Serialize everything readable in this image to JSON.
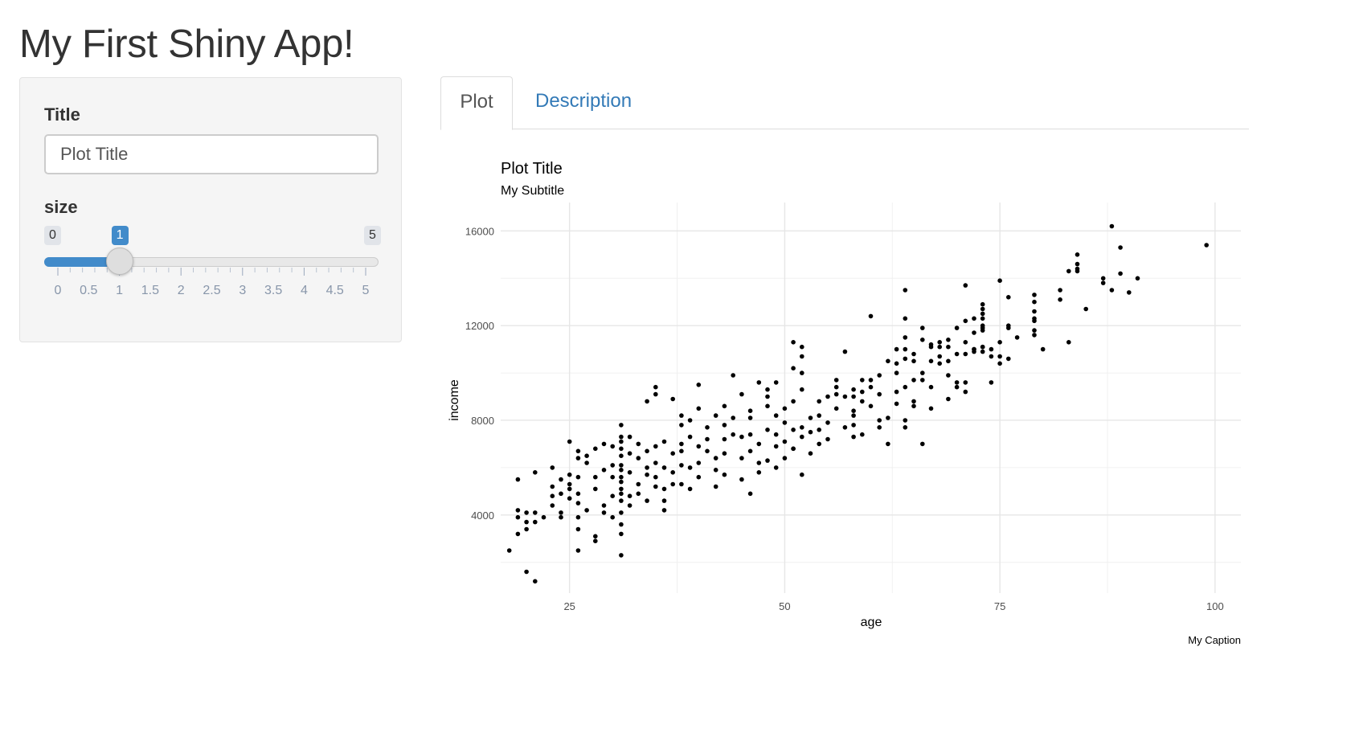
{
  "app": {
    "title": "My First Shiny App!"
  },
  "sidebar": {
    "title_input": {
      "label": "Title",
      "value": "Plot Title"
    },
    "size_slider": {
      "label": "size",
      "min_label": "0",
      "max_label": "5",
      "value_label": "1",
      "min": 0,
      "max": 5,
      "value": 1,
      "tick_labels": [
        "0",
        "0.5",
        "1",
        "1.5",
        "2",
        "2.5",
        "3",
        "3.5",
        "4",
        "4.5",
        "5"
      ],
      "accent_color": "#428bca"
    }
  },
  "tabs": [
    {
      "label": "Plot",
      "active": true
    },
    {
      "label": "Description",
      "active": false
    }
  ],
  "chart_data": {
    "type": "scatter",
    "title": "Plot Title",
    "subtitle": "My Subtitle",
    "xlabel": "age",
    "ylabel": "income",
    "caption": "My Caption",
    "xlim": [
      17,
      103
    ],
    "ylim": [
      700,
      17200
    ],
    "x_ticks": [
      25,
      50,
      75,
      100
    ],
    "x_tick_labels": [
      "25",
      "50",
      "75",
      "100"
    ],
    "y_ticks": [
      4000,
      8000,
      12000,
      16000
    ],
    "y_tick_labels": [
      "4000",
      "8000",
      "12000",
      "16000"
    ],
    "grid": true,
    "point_color": "#000000",
    "points": [
      [
        18,
        2500
      ],
      [
        19,
        5500
      ],
      [
        19,
        4200
      ],
      [
        19,
        3200
      ],
      [
        19,
        3900
      ],
      [
        20,
        1600
      ],
      [
        20,
        3400
      ],
      [
        20,
        3700
      ],
      [
        20,
        4100
      ],
      [
        21,
        1200
      ],
      [
        21,
        3700
      ],
      [
        21,
        5800
      ],
      [
        21,
        4100
      ],
      [
        22,
        3900
      ],
      [
        23,
        4400
      ],
      [
        23,
        5200
      ],
      [
        23,
        6000
      ],
      [
        23,
        4800
      ],
      [
        24,
        4100
      ],
      [
        24,
        3900
      ],
      [
        24,
        4900
      ],
      [
        24,
        5500
      ],
      [
        25,
        5300
      ],
      [
        25,
        5700
      ],
      [
        25,
        4700
      ],
      [
        25,
        5100
      ],
      [
        25,
        7100
      ],
      [
        26,
        6400
      ],
      [
        26,
        6700
      ],
      [
        26,
        5600
      ],
      [
        26,
        4500
      ],
      [
        26,
        3900
      ],
      [
        26,
        3400
      ],
      [
        26,
        2500
      ],
      [
        26,
        4900
      ],
      [
        27,
        6200
      ],
      [
        27,
        4200
      ],
      [
        27,
        6500
      ],
      [
        28,
        5100
      ],
      [
        28,
        5600
      ],
      [
        28,
        6800
      ],
      [
        28,
        2900
      ],
      [
        28,
        3100
      ],
      [
        29,
        7000
      ],
      [
        29,
        5900
      ],
      [
        29,
        4400
      ],
      [
        29,
        4100
      ],
      [
        30,
        3900
      ],
      [
        30,
        6100
      ],
      [
        30,
        4800
      ],
      [
        30,
        5600
      ],
      [
        30,
        6900
      ],
      [
        31,
        2300
      ],
      [
        31,
        3200
      ],
      [
        31,
        3600
      ],
      [
        31,
        4100
      ],
      [
        31,
        4600
      ],
      [
        31,
        5100
      ],
      [
        31,
        5600
      ],
      [
        31,
        6100
      ],
      [
        31,
        6500
      ],
      [
        31,
        7100
      ],
      [
        31,
        7800
      ],
      [
        31,
        6800
      ],
      [
        31,
        4900
      ],
      [
        31,
        5900
      ],
      [
        31,
        5400
      ],
      [
        31,
        7300
      ],
      [
        32,
        7300
      ],
      [
        32,
        6600
      ],
      [
        32,
        5800
      ],
      [
        32,
        4800
      ],
      [
        32,
        4400
      ],
      [
        33,
        6400
      ],
      [
        33,
        5300
      ],
      [
        33,
        7000
      ],
      [
        33,
        4900
      ],
      [
        34,
        6000
      ],
      [
        34,
        5700
      ],
      [
        34,
        4600
      ],
      [
        34,
        8800
      ],
      [
        34,
        6700
      ],
      [
        35,
        5600
      ],
      [
        35,
        6200
      ],
      [
        35,
        5200
      ],
      [
        35,
        9100
      ],
      [
        35,
        9400
      ],
      [
        35,
        6900
      ],
      [
        36,
        7100
      ],
      [
        36,
        5100
      ],
      [
        36,
        4200
      ],
      [
        36,
        4600
      ],
      [
        36,
        6000
      ],
      [
        37,
        5800
      ],
      [
        37,
        5300
      ],
      [
        37,
        8900
      ],
      [
        37,
        6600
      ],
      [
        38,
        7000
      ],
      [
        38,
        6100
      ],
      [
        38,
        6700
      ],
      [
        38,
        5300
      ],
      [
        38,
        8200
      ],
      [
        38,
        7800
      ],
      [
        39,
        6000
      ],
      [
        39,
        5100
      ],
      [
        39,
        7300
      ],
      [
        39,
        8000
      ],
      [
        40,
        5600
      ],
      [
        40,
        6200
      ],
      [
        40,
        6900
      ],
      [
        40,
        8500
      ],
      [
        40,
        9500
      ],
      [
        41,
        6700
      ],
      [
        41,
        7700
      ],
      [
        41,
        7200
      ],
      [
        42,
        5900
      ],
      [
        42,
        5200
      ],
      [
        42,
        8200
      ],
      [
        42,
        6400
      ],
      [
        43,
        7800
      ],
      [
        43,
        7200
      ],
      [
        43,
        8600
      ],
      [
        43,
        6600
      ],
      [
        43,
        5700
      ],
      [
        44,
        9900
      ],
      [
        44,
        7400
      ],
      [
        44,
        8100
      ],
      [
        45,
        6400
      ],
      [
        45,
        7300
      ],
      [
        45,
        9100
      ],
      [
        45,
        5500
      ],
      [
        46,
        6700
      ],
      [
        46,
        7400
      ],
      [
        46,
        8100
      ],
      [
        46,
        4900
      ],
      [
        46,
        8400
      ],
      [
        47,
        9600
      ],
      [
        47,
        7000
      ],
      [
        47,
        6200
      ],
      [
        47,
        5800
      ],
      [
        48,
        8600
      ],
      [
        48,
        6300
      ],
      [
        48,
        7600
      ],
      [
        48,
        9000
      ],
      [
        48,
        9300
      ],
      [
        49,
        6900
      ],
      [
        49,
        7400
      ],
      [
        49,
        8200
      ],
      [
        49,
        9600
      ],
      [
        49,
        6000
      ],
      [
        50,
        7100
      ],
      [
        50,
        8500
      ],
      [
        50,
        6400
      ],
      [
        50,
        7900
      ],
      [
        51,
        6800
      ],
      [
        51,
        7600
      ],
      [
        51,
        8800
      ],
      [
        51,
        10200
      ],
      [
        51,
        11300
      ],
      [
        51,
        6800
      ],
      [
        52,
        5700
      ],
      [
        52,
        7300
      ],
      [
        52,
        7700
      ],
      [
        52,
        9300
      ],
      [
        52,
        10000
      ],
      [
        52,
        10700
      ],
      [
        52,
        11100
      ],
      [
        53,
        8100
      ],
      [
        53,
        7500
      ],
      [
        53,
        6600
      ],
      [
        54,
        8200
      ],
      [
        54,
        8800
      ],
      [
        54,
        7000
      ],
      [
        54,
        7600
      ],
      [
        55,
        7200
      ],
      [
        55,
        7900
      ],
      [
        55,
        9000
      ],
      [
        56,
        9400
      ],
      [
        56,
        9700
      ],
      [
        56,
        9100
      ],
      [
        56,
        8500
      ],
      [
        57,
        7700
      ],
      [
        57,
        10900
      ],
      [
        57,
        9000
      ],
      [
        58,
        9300
      ],
      [
        58,
        9000
      ],
      [
        58,
        8400
      ],
      [
        58,
        7300
      ],
      [
        58,
        8200
      ],
      [
        58,
        7800
      ],
      [
        59,
        7400
      ],
      [
        59,
        8800
      ],
      [
        59,
        9700
      ],
      [
        59,
        9200
      ],
      [
        60,
        9700
      ],
      [
        60,
        8600
      ],
      [
        60,
        12400
      ],
      [
        60,
        9400
      ],
      [
        61,
        9900
      ],
      [
        61,
        9100
      ],
      [
        61,
        8000
      ],
      [
        61,
        7700
      ],
      [
        62,
        7000
      ],
      [
        62,
        8100
      ],
      [
        62,
        10500
      ],
      [
        63,
        10000
      ],
      [
        63,
        11000
      ],
      [
        63,
        9200
      ],
      [
        63,
        10400
      ],
      [
        63,
        8700
      ],
      [
        64,
        13500
      ],
      [
        64,
        12300
      ],
      [
        64,
        11000
      ],
      [
        64,
        10600
      ],
      [
        64,
        9400
      ],
      [
        64,
        8000
      ],
      [
        64,
        7700
      ],
      [
        64,
        11500
      ],
      [
        65,
        10800
      ],
      [
        65,
        9700
      ],
      [
        65,
        8800
      ],
      [
        65,
        8600
      ],
      [
        65,
        10500
      ],
      [
        66,
        9700
      ],
      [
        66,
        10000
      ],
      [
        66,
        11400
      ],
      [
        66,
        11900
      ],
      [
        66,
        7000
      ],
      [
        67,
        11100
      ],
      [
        67,
        10500
      ],
      [
        67,
        11200
      ],
      [
        67,
        8500
      ],
      [
        67,
        9400
      ],
      [
        68,
        10700
      ],
      [
        68,
        11100
      ],
      [
        68,
        11300
      ],
      [
        68,
        10400
      ],
      [
        69,
        8900
      ],
      [
        69,
        9900
      ],
      [
        69,
        11400
      ],
      [
        69,
        11100
      ],
      [
        69,
        10500
      ],
      [
        70,
        9400
      ],
      [
        70,
        9600
      ],
      [
        70,
        10800
      ],
      [
        70,
        11900
      ],
      [
        71,
        11300
      ],
      [
        71,
        10800
      ],
      [
        71,
        12200
      ],
      [
        71,
        13700
      ],
      [
        71,
        9600
      ],
      [
        71,
        9200
      ],
      [
        72,
        11700
      ],
      [
        72,
        10900
      ],
      [
        72,
        11000
      ],
      [
        72,
        12300
      ],
      [
        72,
        11000
      ],
      [
        73,
        12300
      ],
      [
        73,
        10900
      ],
      [
        73,
        11100
      ],
      [
        73,
        11900
      ],
      [
        73,
        12000
      ],
      [
        73,
        12500
      ],
      [
        73,
        12700
      ],
      [
        73,
        12900
      ],
      [
        73,
        11800
      ],
      [
        73,
        11100
      ],
      [
        74,
        9600
      ],
      [
        74,
        11000
      ],
      [
        74,
        10700
      ],
      [
        75,
        10400
      ],
      [
        75,
        13900
      ],
      [
        75,
        10700
      ],
      [
        75,
        11300
      ],
      [
        76,
        12000
      ],
      [
        76,
        13200
      ],
      [
        76,
        10600
      ],
      [
        76,
        11900
      ],
      [
        77,
        11500
      ],
      [
        79,
        13300
      ],
      [
        79,
        13000
      ],
      [
        79,
        12600
      ],
      [
        79,
        12300
      ],
      [
        79,
        11800
      ],
      [
        79,
        11600
      ],
      [
        79,
        12200
      ],
      [
        80,
        11000
      ],
      [
        82,
        13100
      ],
      [
        82,
        13500
      ],
      [
        83,
        11300
      ],
      [
        83,
        14300
      ],
      [
        84,
        14600
      ],
      [
        84,
        15000
      ],
      [
        84,
        14400
      ],
      [
        84,
        14300
      ],
      [
        85,
        12700
      ],
      [
        87,
        14000
      ],
      [
        87,
        13800
      ],
      [
        88,
        16200
      ],
      [
        88,
        13500
      ],
      [
        89,
        15300
      ],
      [
        89,
        14200
      ],
      [
        90,
        13400
      ],
      [
        91,
        14000
      ],
      [
        99,
        15400
      ]
    ]
  }
}
